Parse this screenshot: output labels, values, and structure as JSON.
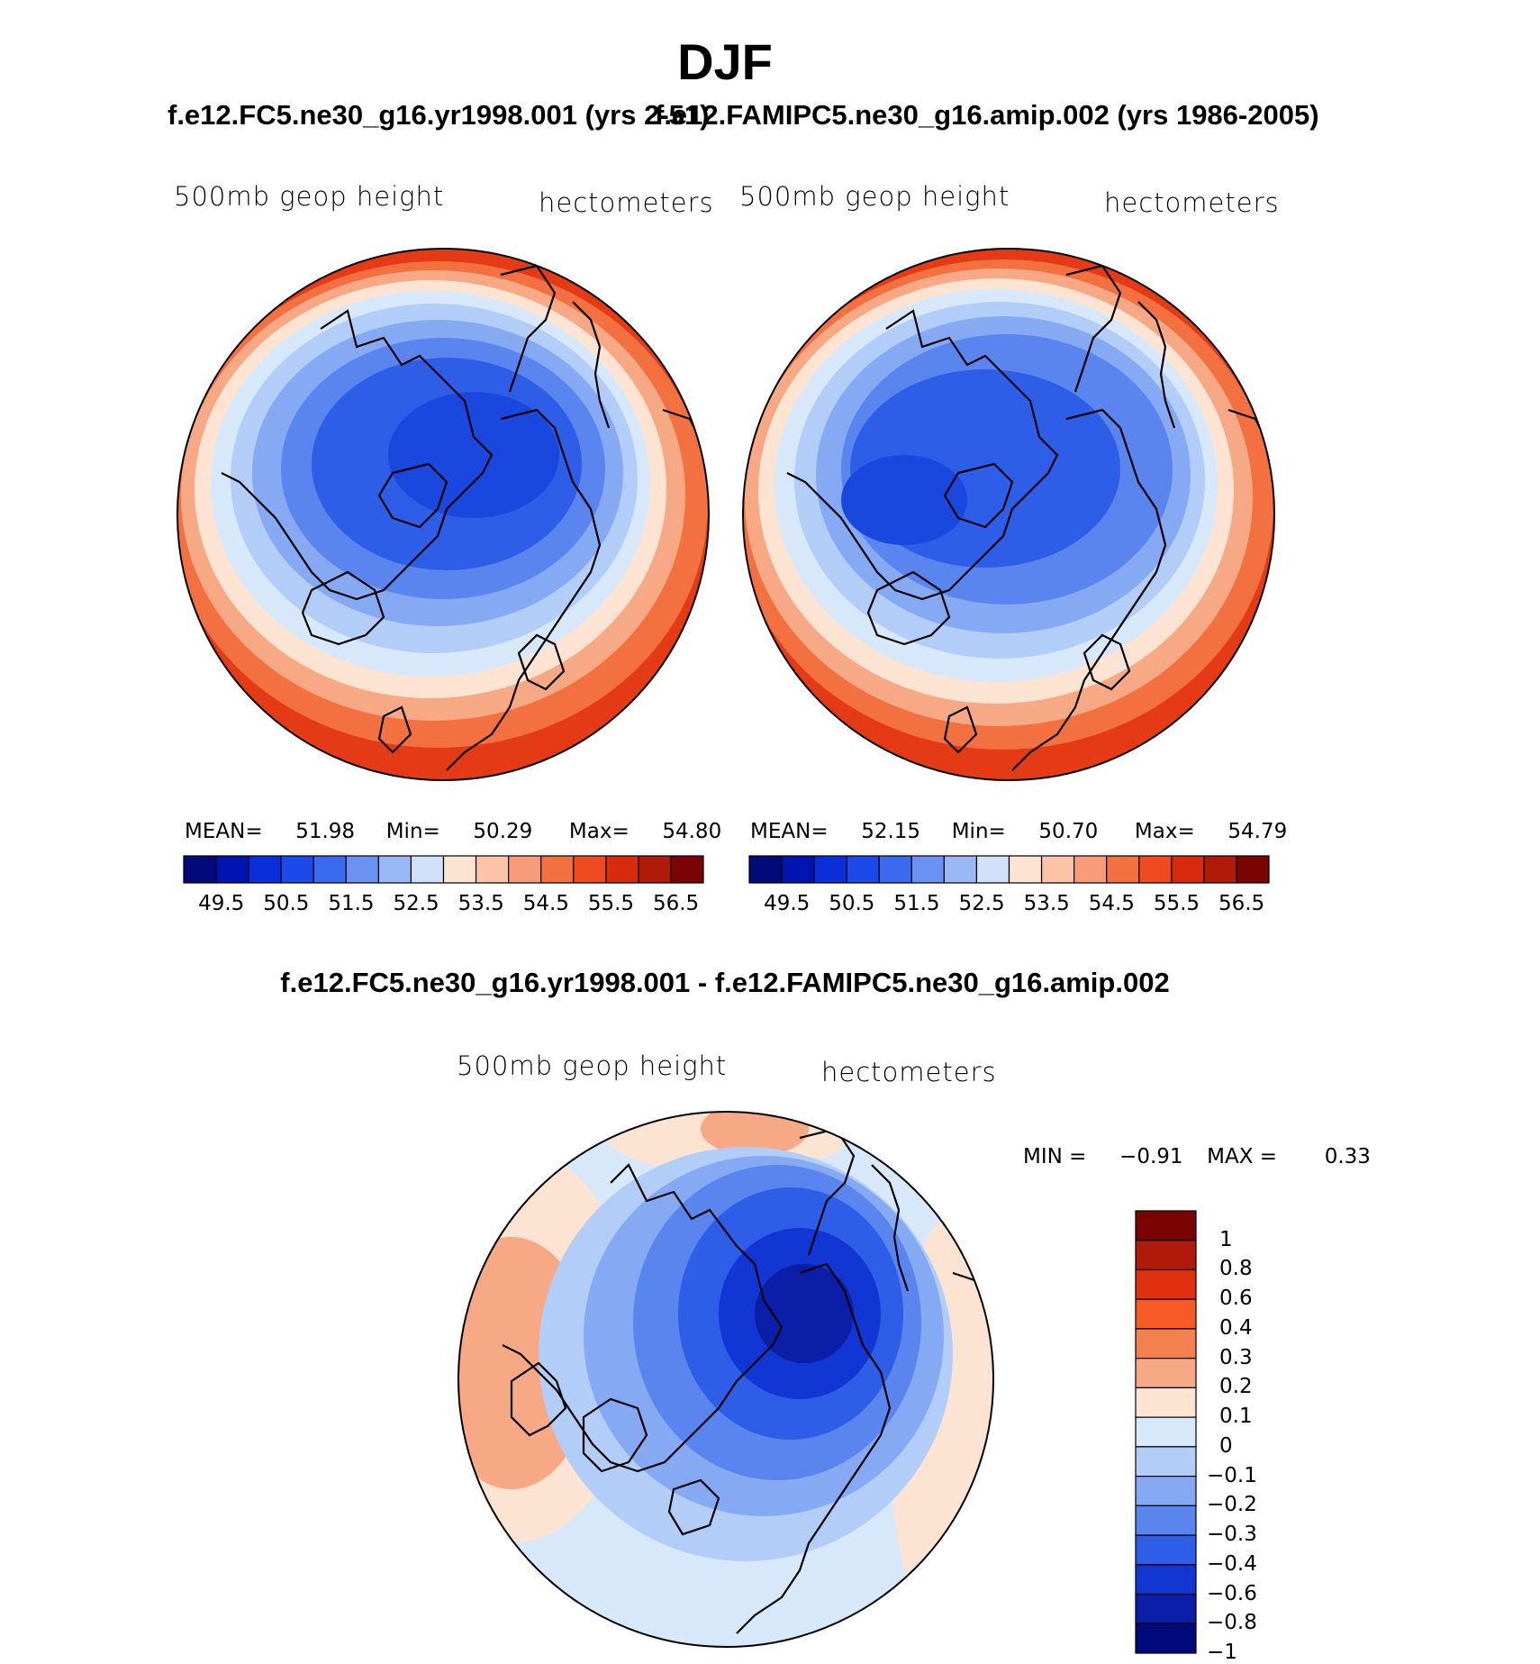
{
  "figure": {
    "title": "DJF",
    "left_case_title": "f.e12.FC5.ne30_g16.yr1998.001 (yrs 2-51)",
    "right_case_title": "f.e12.FAMIPC5.ne30_g16.amip.002 (yrs 1986-2005)",
    "diff_title": "f.e12.FC5.ne30_g16.yr1998.001 - f.e12.FAMIPC5.ne30_g16.amip.002"
  },
  "panels": {
    "left": {
      "variable": "500mb geop height",
      "units": "hectometers",
      "mean_label": "MEAN=",
      "mean": "51.98",
      "min_label": "Min=",
      "min": "50.29",
      "max_label": "Max=",
      "max": "54.80"
    },
    "right": {
      "variable": "500mb geop height",
      "units": "hectometers",
      "mean_label": "MEAN=",
      "mean": "52.15",
      "min_label": "Min=",
      "min": "50.70",
      "max_label": "Max=",
      "max": "54.79"
    },
    "diff": {
      "variable": "500mb geop height",
      "units": "hectometers",
      "min_label": "MIN =",
      "min": "−0.91",
      "max_label": "MAX =",
      "max": "0.33"
    }
  },
  "colorbars": {
    "abs_tick_labels": [
      "49.5",
      "50.5",
      "51.5",
      "52.5",
      "53.5",
      "54.5",
      "55.5",
      "56.5"
    ],
    "abs_colors": [
      "#000a7a",
      "#0014b0",
      "#0a2ed8",
      "#1c4ae8",
      "#3a6aee",
      "#6a92f2",
      "#9ab8f6",
      "#cfe2fa",
      "#fde4d2",
      "#fbc4a6",
      "#f79c78",
      "#f37040",
      "#ef4a20",
      "#d82a0c",
      "#b01a08",
      "#7a0404"
    ],
    "diff_tick_labels": [
      "1",
      "0.8",
      "0.6",
      "0.4",
      "0.3",
      "0.2",
      "0.1",
      "0",
      "−0.1",
      "−0.2",
      "−0.3",
      "−0.4",
      "−0.6",
      "−0.8",
      "−1"
    ],
    "diff_colors": [
      "#7a0404",
      "#b01a08",
      "#e03010",
      "#f75a24",
      "#f48050",
      "#f7a884",
      "#fde4d2",
      "#d8e8fb",
      "#b2cdf8",
      "#86a9f4",
      "#5a84ee",
      "#2e5ee8",
      "#1236d4",
      "#0a1ea8",
      "#000a7a"
    ]
  }
}
